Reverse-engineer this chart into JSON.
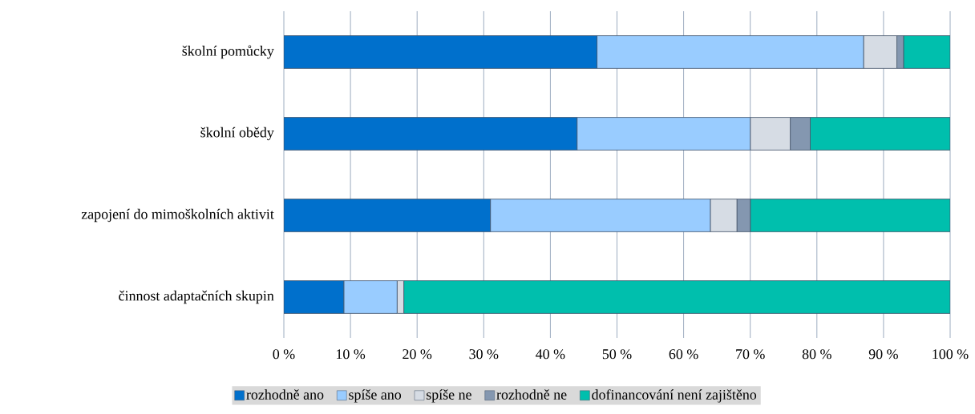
{
  "chart_data": {
    "type": "bar",
    "orientation": "horizontal",
    "stacked": true,
    "categories": [
      "školní pomůcky",
      "školní obědy",
      "zapojení do mimoškolních aktivit",
      "činnost adaptačních skupin"
    ],
    "series": [
      {
        "name": "rozhodně ano",
        "color": "#0070cc",
        "values": [
          47,
          44,
          31,
          9
        ]
      },
      {
        "name": "spíše ano",
        "color": "#99ccff",
        "values": [
          40,
          26,
          33,
          8
        ]
      },
      {
        "name": "spíše ne",
        "color": "#d6dce4",
        "values": [
          5,
          6,
          4,
          1
        ]
      },
      {
        "name": "rozhodně ne",
        "color": "#8497b0",
        "values": [
          1,
          3,
          2,
          0
        ]
      },
      {
        "name": "dofinancování není zajištěno",
        "color": "#00bfad",
        "values": [
          7,
          21,
          30,
          82
        ]
      }
    ],
    "xlim": [
      0,
      100
    ],
    "xticks": [
      {
        "value": 0,
        "label": "0 %"
      },
      {
        "value": 10,
        "label": "10 %"
      },
      {
        "value": 20,
        "label": "20 %"
      },
      {
        "value": 30,
        "label": "30 %"
      },
      {
        "value": 40,
        "label": "40 %"
      },
      {
        "value": 50,
        "label": "50 %"
      },
      {
        "value": 60,
        "label": "60 %"
      },
      {
        "value": 70,
        "label": "70 %"
      },
      {
        "value": 80,
        "label": "80 %"
      },
      {
        "value": 90,
        "label": "90 %"
      },
      {
        "value": 100,
        "label": "100 %"
      }
    ],
    "grid": "x",
    "legend": "bottom"
  }
}
